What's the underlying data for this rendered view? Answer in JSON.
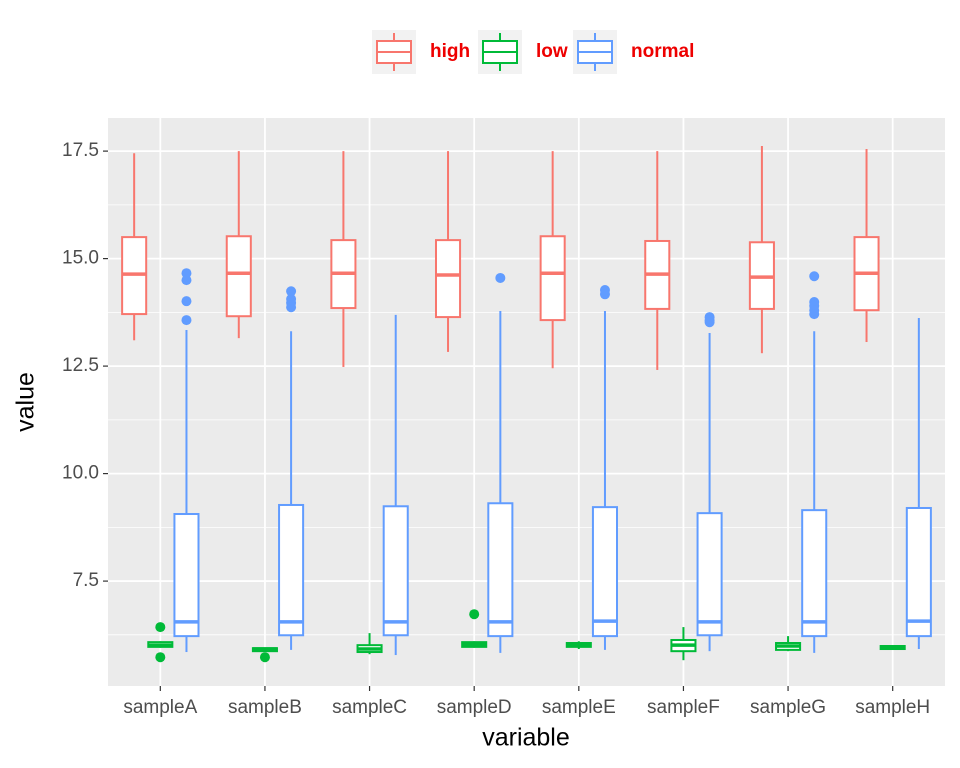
{
  "chart_data": {
    "type": "boxplot",
    "x_label": "variable",
    "y_label": "value",
    "categories": [
      "sampleA",
      "sampleB",
      "sampleC",
      "sampleD",
      "sampleE",
      "sampleF",
      "sampleG",
      "sampleH"
    ],
    "ylim": [
      5.06,
      18.27
    ],
    "yticks": [
      {
        "value": 7.5,
        "label": "7.5"
      },
      {
        "value": 10,
        "label": "10.0"
      },
      {
        "value": 12.5,
        "label": "12.5"
      },
      {
        "value": 15,
        "label": "15.0"
      },
      {
        "value": 17.5,
        "label": "17.5"
      }
    ],
    "minor_yticks": [
      6.25,
      8.75,
      11.25,
      13.75,
      16.25
    ],
    "grid": true,
    "legend_position": "top",
    "legend_text_color": "#ee0000",
    "series": [
      {
        "name": "high",
        "color": "#f8766d",
        "min": [
          13.1,
          13.15,
          12.48,
          12.83,
          12.45,
          12.41,
          12.8,
          13.06
        ],
        "q1": [
          13.71,
          13.66,
          13.85,
          13.64,
          13.57,
          13.83,
          13.83,
          13.8
        ],
        "median": [
          14.64,
          14.66,
          14.66,
          14.62,
          14.66,
          14.64,
          14.57,
          14.66
        ],
        "q3": [
          15.5,
          15.52,
          15.43,
          15.43,
          15.52,
          15.41,
          15.38,
          15.5
        ],
        "max": [
          17.45,
          17.5,
          17.5,
          17.5,
          17.5,
          17.5,
          17.62,
          17.55
        ],
        "outliers": [
          [],
          [],
          [],
          [],
          [],
          [],
          [],
          []
        ]
      },
      {
        "name": "low",
        "color": "#00ba38",
        "min": [
          5.95,
          5.85,
          5.8,
          5.95,
          5.92,
          5.66,
          5.87,
          5.9
        ],
        "q1": [
          5.97,
          5.87,
          5.85,
          5.97,
          5.97,
          5.87,
          5.9,
          5.92
        ],
        "median": [
          6.01,
          5.92,
          5.92,
          6.03,
          6.01,
          6.01,
          5.99,
          5.97
        ],
        "q3": [
          6.08,
          5.94,
          6.01,
          6.08,
          6.06,
          6.13,
          6.06,
          5.99
        ],
        "max": [
          6.1,
          5.95,
          6.29,
          6.1,
          6.1,
          6.43,
          6.22,
          6.01
        ],
        "outliers": [
          [
            6.43,
            5.73
          ],
          [
            5.73
          ],
          [],
          [
            6.73
          ],
          [],
          [],
          [],
          []
        ]
      },
      {
        "name": "normal",
        "color": "#619cff",
        "min": [
          5.85,
          5.9,
          5.78,
          5.83,
          5.9,
          5.87,
          5.83,
          5.92
        ],
        "q1": [
          6.22,
          6.24,
          6.24,
          6.22,
          6.22,
          6.24,
          6.22,
          6.22
        ],
        "median": [
          6.55,
          6.55,
          6.55,
          6.55,
          6.57,
          6.55,
          6.55,
          6.57
        ],
        "q3": [
          9.06,
          9.27,
          9.24,
          9.31,
          9.22,
          9.08,
          9.15,
          9.2
        ],
        "max": [
          13.34,
          13.31,
          13.69,
          13.78,
          13.78,
          13.27,
          13.31,
          13.62
        ],
        "outliers": [
          [
            14.66,
            14.5,
            14.01,
            13.57
          ],
          [
            14.24,
            14.06,
            13.97,
            13.87
          ],
          [],
          [
            14.55
          ],
          [
            14.27,
            14.17
          ],
          [
            13.64,
            13.57,
            13.52
          ],
          [
            14.59,
            13.99,
            13.9,
            13.8,
            13.71
          ],
          []
        ]
      }
    ]
  }
}
